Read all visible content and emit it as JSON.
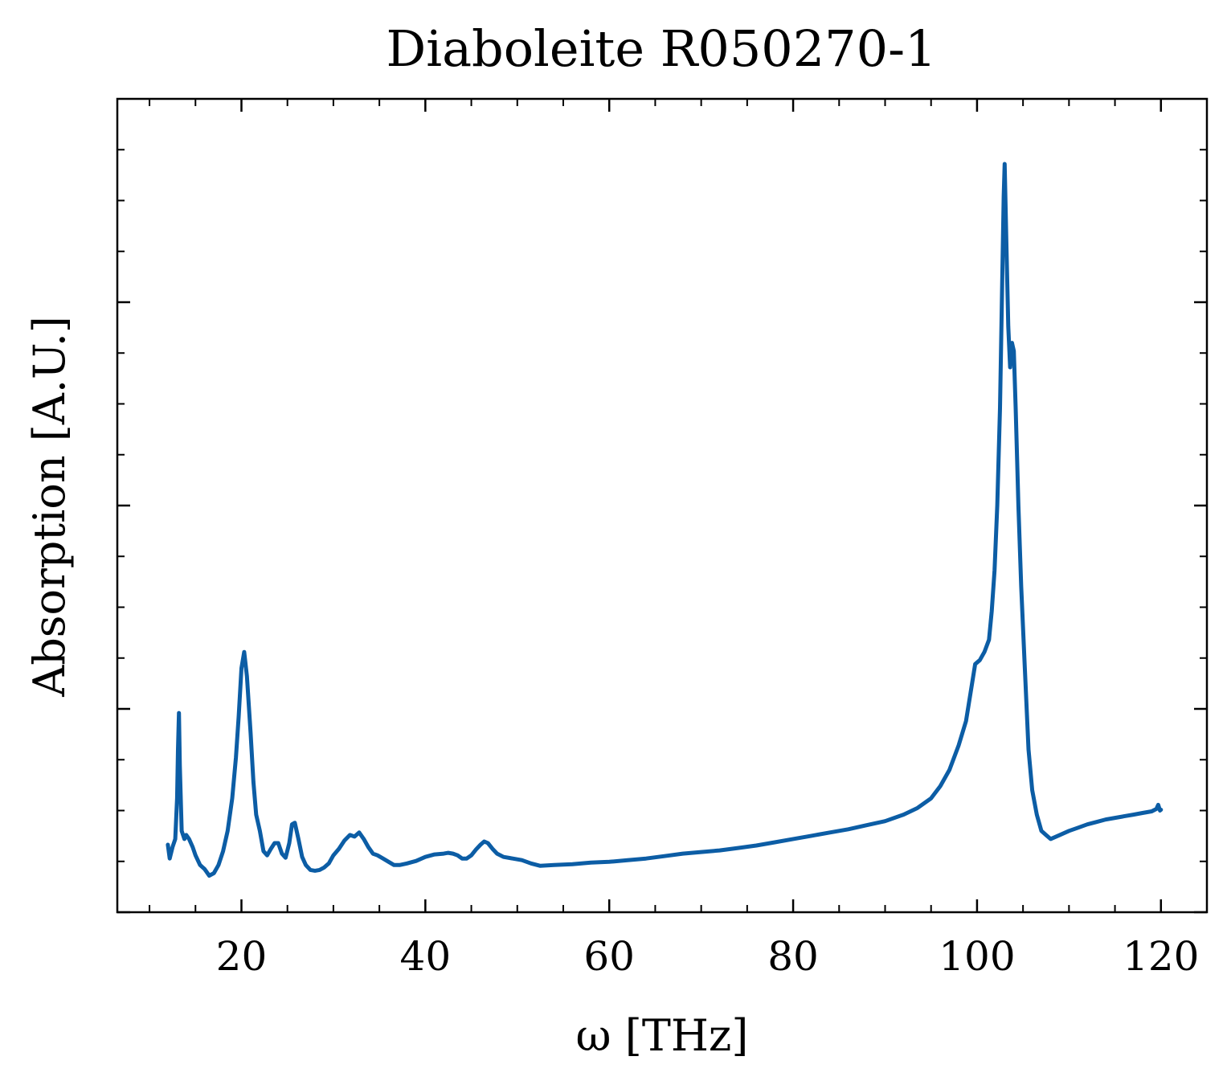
{
  "chart_data": {
    "type": "line",
    "title": "Diaboleite R050270-1",
    "xlabel": "ω [THz]",
    "ylabel": "Absorption [A.U.]",
    "xlim": [
      6.5,
      125
    ],
    "ylim": [
      0.0,
      1.0
    ],
    "xticks": [
      20,
      40,
      60,
      80,
      100,
      120
    ],
    "y_major_ticks": [
      0.0,
      0.25,
      0.5,
      0.75
    ],
    "y_tick_labels_shown": false,
    "grid": false,
    "line_color": "#0C5DA5",
    "series": [
      {
        "name": "",
        "points": [
          [
            12.0,
            0.083
          ],
          [
            12.2,
            0.066
          ],
          [
            12.5,
            0.08
          ],
          [
            12.8,
            0.09
          ],
          [
            13.0,
            0.14
          ],
          [
            13.1,
            0.2
          ],
          [
            13.2,
            0.245
          ],
          [
            13.3,
            0.18
          ],
          [
            13.5,
            0.1
          ],
          [
            13.8,
            0.09
          ],
          [
            14.0,
            0.095
          ],
          [
            14.3,
            0.09
          ],
          [
            14.7,
            0.08
          ],
          [
            15.0,
            0.07
          ],
          [
            15.5,
            0.058
          ],
          [
            16.0,
            0.053
          ],
          [
            16.5,
            0.045
          ],
          [
            17.0,
            0.048
          ],
          [
            17.5,
            0.058
          ],
          [
            18.0,
            0.075
          ],
          [
            18.5,
            0.1
          ],
          [
            19.0,
            0.14
          ],
          [
            19.4,
            0.19
          ],
          [
            19.7,
            0.24
          ],
          [
            20.0,
            0.3
          ],
          [
            20.3,
            0.32
          ],
          [
            20.6,
            0.29
          ],
          [
            21.0,
            0.22
          ],
          [
            21.3,
            0.16
          ],
          [
            21.6,
            0.12
          ],
          [
            22.0,
            0.1
          ],
          [
            22.4,
            0.075
          ],
          [
            22.8,
            0.07
          ],
          [
            23.2,
            0.078
          ],
          [
            23.6,
            0.085
          ],
          [
            24.0,
            0.085
          ],
          [
            24.4,
            0.072
          ],
          [
            24.8,
            0.067
          ],
          [
            25.2,
            0.085
          ],
          [
            25.5,
            0.108
          ],
          [
            25.8,
            0.11
          ],
          [
            26.2,
            0.09
          ],
          [
            26.6,
            0.068
          ],
          [
            27.0,
            0.058
          ],
          [
            27.5,
            0.052
          ],
          [
            28.0,
            0.051
          ],
          [
            28.5,
            0.052
          ],
          [
            29.0,
            0.055
          ],
          [
            29.5,
            0.06
          ],
          [
            30.0,
            0.07
          ],
          [
            30.6,
            0.078
          ],
          [
            31.2,
            0.088
          ],
          [
            31.8,
            0.095
          ],
          [
            32.3,
            0.093
          ],
          [
            32.8,
            0.098
          ],
          [
            33.3,
            0.09
          ],
          [
            33.8,
            0.08
          ],
          [
            34.3,
            0.072
          ],
          [
            34.8,
            0.07
          ],
          [
            35.4,
            0.066
          ],
          [
            36.0,
            0.062
          ],
          [
            36.6,
            0.058
          ],
          [
            37.2,
            0.058
          ],
          [
            38.0,
            0.06
          ],
          [
            39.0,
            0.063
          ],
          [
            40.0,
            0.068
          ],
          [
            41.0,
            0.071
          ],
          [
            42.0,
            0.072
          ],
          [
            42.5,
            0.073
          ],
          [
            43.0,
            0.072
          ],
          [
            43.5,
            0.07
          ],
          [
            44.0,
            0.066
          ],
          [
            44.5,
            0.066
          ],
          [
            45.0,
            0.07
          ],
          [
            45.5,
            0.077
          ],
          [
            46.0,
            0.083
          ],
          [
            46.4,
            0.087
          ],
          [
            46.8,
            0.085
          ],
          [
            47.3,
            0.078
          ],
          [
            47.8,
            0.072
          ],
          [
            48.5,
            0.068
          ],
          [
            49.5,
            0.066
          ],
          [
            50.5,
            0.064
          ],
          [
            51.5,
            0.06
          ],
          [
            52.5,
            0.057
          ],
          [
            54.0,
            0.058
          ],
          [
            56.0,
            0.059
          ],
          [
            58.0,
            0.061
          ],
          [
            60.0,
            0.062
          ],
          [
            62.0,
            0.064
          ],
          [
            64.0,
            0.066
          ],
          [
            66.0,
            0.069
          ],
          [
            68.0,
            0.072
          ],
          [
            70.0,
            0.074
          ],
          [
            72.0,
            0.076
          ],
          [
            74.0,
            0.079
          ],
          [
            76.0,
            0.082
          ],
          [
            78.0,
            0.086
          ],
          [
            80.0,
            0.09
          ],
          [
            82.0,
            0.094
          ],
          [
            84.0,
            0.098
          ],
          [
            86.0,
            0.102
          ],
          [
            88.0,
            0.107
          ],
          [
            90.0,
            0.112
          ],
          [
            92.0,
            0.12
          ],
          [
            93.5,
            0.128
          ],
          [
            95.0,
            0.14
          ],
          [
            96.0,
            0.155
          ],
          [
            97.0,
            0.175
          ],
          [
            98.0,
            0.205
          ],
          [
            98.8,
            0.235
          ],
          [
            99.3,
            0.27
          ],
          [
            99.8,
            0.305
          ],
          [
            100.3,
            0.31
          ],
          [
            100.8,
            0.32
          ],
          [
            101.3,
            0.335
          ],
          [
            101.6,
            0.37
          ],
          [
            101.9,
            0.42
          ],
          [
            102.2,
            0.5
          ],
          [
            102.5,
            0.62
          ],
          [
            102.7,
            0.75
          ],
          [
            102.9,
            0.88
          ],
          [
            103.0,
            0.92
          ],
          [
            103.2,
            0.82
          ],
          [
            103.4,
            0.72
          ],
          [
            103.6,
            0.67
          ],
          [
            103.8,
            0.7
          ],
          [
            104.0,
            0.69
          ],
          [
            104.2,
            0.62
          ],
          [
            104.5,
            0.5
          ],
          [
            104.8,
            0.4
          ],
          [
            105.2,
            0.3
          ],
          [
            105.6,
            0.2
          ],
          [
            106.0,
            0.15
          ],
          [
            106.5,
            0.12
          ],
          [
            107.0,
            0.1
          ],
          [
            107.5,
            0.095
          ],
          [
            108.0,
            0.09
          ],
          [
            109.0,
            0.095
          ],
          [
            110.0,
            0.1
          ],
          [
            111.0,
            0.104
          ],
          [
            112.0,
            0.108
          ],
          [
            113.0,
            0.111
          ],
          [
            114.0,
            0.114
          ],
          [
            115.0,
            0.116
          ],
          [
            116.0,
            0.118
          ],
          [
            117.0,
            0.12
          ],
          [
            118.0,
            0.122
          ],
          [
            119.0,
            0.124
          ],
          [
            119.5,
            0.127
          ],
          [
            119.7,
            0.132
          ],
          [
            119.9,
            0.125
          ],
          [
            120.0,
            0.126
          ]
        ]
      }
    ]
  }
}
